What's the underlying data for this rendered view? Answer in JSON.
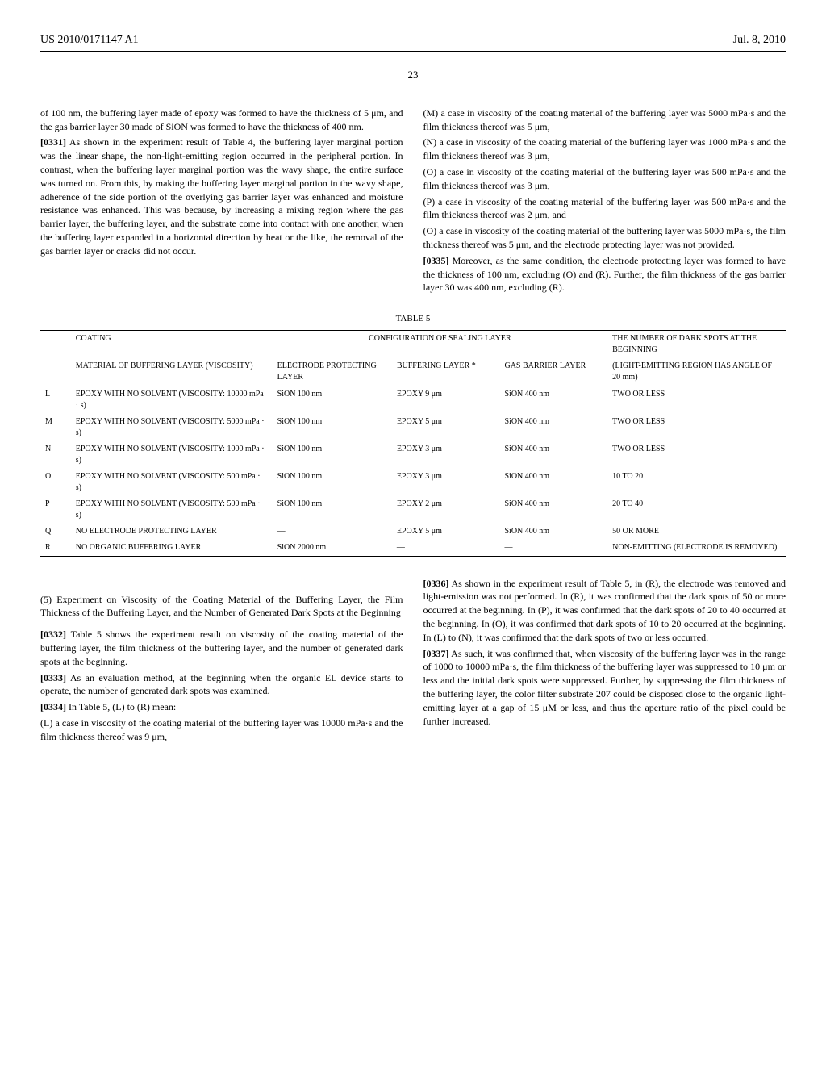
{
  "header": {
    "pub_number": "US 2010/0171147 A1",
    "date": "Jul. 8, 2010"
  },
  "page_number": "23",
  "col_left": {
    "p0": "of 100 nm, the buffering layer made of epoxy was formed to have the thickness of 5 μm, and the gas barrier layer 30 made of SiON was formed to have the thickness of 400 nm.",
    "p1_num": "[0331]",
    "p1": "As shown in the experiment result of Table 4, the buffering layer marginal portion was the linear shape, the non-light-emitting region occurred in the peripheral portion. In contrast, when the buffering layer marginal portion was the wavy shape, the entire surface was turned on. From this, by making the buffering layer marginal portion in the wavy shape, adherence of the side portion of the overlying gas barrier layer was enhanced and moisture resistance was enhanced. This was because, by increasing a mixing region where the gas barrier layer, the buffering layer, and the substrate come into contact with one another, when the buffering layer expanded in a horizontal direction by heat or the like, the removal of the gas barrier layer or cracks did not occur.",
    "section5": "(5) Experiment on Viscosity of the Coating Material of the Buffering Layer, the Film Thickness of the Buffering Layer, and the Number of Generated Dark Spots at the Beginning",
    "p2_num": "[0332]",
    "p2": "Table 5 shows the experiment result on viscosity of the coating material of the buffering layer, the film thickness of the buffering layer, and the number of generated dark spots at the beginning.",
    "p3_num": "[0333]",
    "p3": "As an evaluation method, at the beginning when the organic EL device starts to operate, the number of generated dark spots was examined.",
    "p4_num": "[0334]",
    "p4": "In Table 5, (L) to (R) mean:",
    "p5": "(L) a case in viscosity of the coating material of the buffering layer was 10000 mPa·s and the film thickness thereof was 9 μm,"
  },
  "col_right": {
    "p0": "(M) a case in viscosity of the coating material of the buffering layer was 5000 mPa·s and the film thickness thereof was 5 μm,",
    "p1": "(N) a case in viscosity of the coating material of the buffering layer was 1000 mPa·s and the film thickness thereof was 3 μm,",
    "p2": "(O) a case in viscosity of the coating material of the buffering layer was 500 mPa·s and the film thickness thereof was 3 μm,",
    "p3": "(P) a case in viscosity of the coating material of the buffering layer was 500 mPa·s and the film thickness thereof was 2 μm, and",
    "p4": "(O) a case in viscosity of the coating material of the buffering layer was 5000 mPa·s, the film thickness thereof was 5 μm, and the electrode protecting layer was not provided.",
    "p5_num": "[0335]",
    "p5": "Moreover, as the same condition, the electrode protecting layer was formed to have the thickness of 100 nm, excluding (O) and (R). Further, the film thickness of the gas barrier layer 30 was 400 nm, excluding (R).",
    "p6_num": "[0336]",
    "p6": "As shown in the experiment result of Table 5, in (R), the electrode was removed and light-emission was not performed. In (R), it was confirmed that the dark spots of 50 or more occurred at the beginning. In (P), it was confirmed that the dark spots of 20 to 40 occurred at the beginning. In (O), it was confirmed that dark spots of 10 to 20 occurred at the beginning. In (L) to (N), it was confirmed that the dark spots of two or less occurred.",
    "p7_num": "[0337]",
    "p7": "As such, it was confirmed that, when viscosity of the buffering layer was in the range of 1000 to 10000 mPa·s, the film thickness of the buffering layer was suppressed to 10 μm or less and the initial dark spots were suppressed. Further, by suppressing the film thickness of the buffering layer, the color filter substrate 207 could be disposed close to the organic light-emitting layer at a gap of 15 μM or less, and thus the aperture ratio of the pixel could be further increased."
  },
  "table5": {
    "label": "TABLE 5",
    "header1": {
      "c1": "COATING",
      "c2": "CONFIGURATION OF SEALING LAYER",
      "c3": "THE NUMBER OF DARK SPOTS AT THE BEGINNING"
    },
    "header2": {
      "c1": "MATERIAL OF BUFFERING LAYER (VISCOSITY)",
      "c2": "ELECTRODE PROTECTING LAYER",
      "c3": "BUFFERING LAYER *",
      "c4": "GAS BARRIER LAYER",
      "c5": "(LIGHT-EMITTING REGION HAS ANGLE OF 20 mm)"
    },
    "rows": [
      {
        "id": "L",
        "mat": "EPOXY WITH NO SOLVENT (VISCOSITY: 10000 mPa · s)",
        "epl": "SiON 100 nm",
        "buf": "EPOXY 9 μm",
        "gas": "SiON 400 nm",
        "dark": "TWO OR LESS"
      },
      {
        "id": "M",
        "mat": "EPOXY WITH NO SOLVENT (VISCOSITY: 5000 mPa · s)",
        "epl": "SiON 100 nm",
        "buf": "EPOXY 5 μm",
        "gas": "SiON 400 nm",
        "dark": "TWO OR LESS"
      },
      {
        "id": "N",
        "mat": "EPOXY WITH NO SOLVENT (VISCOSITY: 1000 mPa · s)",
        "epl": "SiON 100 nm",
        "buf": "EPOXY 3 μm",
        "gas": "SiON 400 nm",
        "dark": "TWO OR LESS"
      },
      {
        "id": "O",
        "mat": "EPOXY WITH NO SOLVENT (VISCOSITY: 500 mPa · s)",
        "epl": "SiON 100 nm",
        "buf": "EPOXY 3 μm",
        "gas": "SiON 400 nm",
        "dark": "10 TO 20"
      },
      {
        "id": "P",
        "mat": "EPOXY WITH NO SOLVENT (VISCOSITY: 500 mPa · s)",
        "epl": "SiON 100 nm",
        "buf": "EPOXY 2 μm",
        "gas": "SiON 400 nm",
        "dark": "20 TO 40"
      },
      {
        "id": "Q",
        "mat": "NO ELECTRODE PROTECTING LAYER",
        "epl": "—",
        "buf": "EPOXY 5 μm",
        "gas": "SiON 400 nm",
        "dark": "50 OR MORE"
      },
      {
        "id": "R",
        "mat": "NO ORGANIC BUFFERING LAYER",
        "epl": "SiON 2000 nm",
        "buf": "—",
        "gas": "—",
        "dark": "NON-EMITTING (ELECTRODE IS REMOVED)"
      }
    ]
  }
}
